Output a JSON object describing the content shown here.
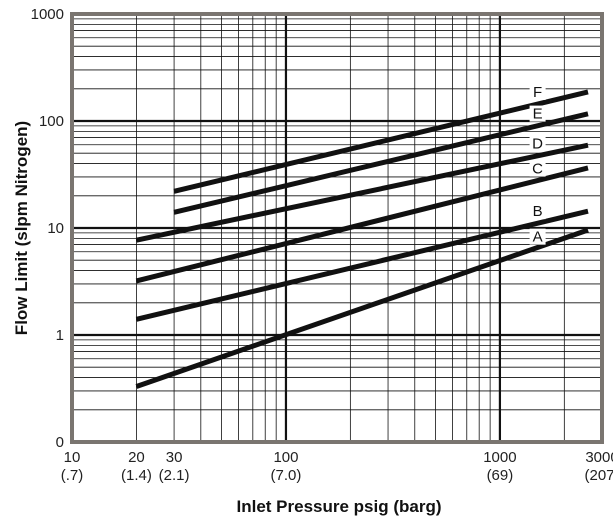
{
  "chart_data": {
    "type": "line",
    "title": "",
    "xlabel": "Inlet Pressure psig (barg)",
    "ylabel": "Flow Limit (slpm Nitrogen)",
    "xscale": "log",
    "yscale": "log",
    "xlim": [
      10,
      3000
    ],
    "ylim": [
      0.1,
      1000
    ],
    "grid": true,
    "legend": "inline labels at right end of each line",
    "x_ticks": [
      {
        "value": 10,
        "label": "10",
        "sublabel": "(.7)"
      },
      {
        "value": 20,
        "label": "20",
        "sublabel": "(1.4)"
      },
      {
        "value": 30,
        "label": "30",
        "sublabel": "(2.1)"
      },
      {
        "value": 100,
        "label": "100",
        "sublabel": "(7.0)"
      },
      {
        "value": 1000,
        "label": "1000",
        "sublabel": "(69)"
      },
      {
        "value": 3000,
        "label": "3000",
        "sublabel": "(207)"
      }
    ],
    "y_ticks": [
      {
        "value": 0.1,
        "label": "0"
      },
      {
        "value": 1,
        "label": "1"
      },
      {
        "value": 10,
        "label": "10"
      },
      {
        "value": 100,
        "label": "100"
      },
      {
        "value": 1000,
        "label": "1000"
      }
    ],
    "series": [
      {
        "name": "A",
        "x": [
          20,
          3000
        ],
        "y": [
          0.33,
          10
        ]
      },
      {
        "name": "B",
        "x": [
          20,
          3000
        ],
        "y": [
          1.4,
          15
        ]
      },
      {
        "name": "C",
        "x": [
          20,
          3000
        ],
        "y": [
          3.2,
          38
        ]
      },
      {
        "name": "D",
        "x": [
          20,
          3000
        ],
        "y": [
          7.7,
          62
        ]
      },
      {
        "name": "E",
        "x": [
          30,
          3000
        ],
        "y": [
          14,
          122
        ]
      },
      {
        "name": "F",
        "x": [
          30,
          3000
        ],
        "y": [
          22,
          195
        ]
      }
    ],
    "colors": {
      "line": "#111111",
      "frame": "#7a7570",
      "grid": "#111111"
    }
  }
}
